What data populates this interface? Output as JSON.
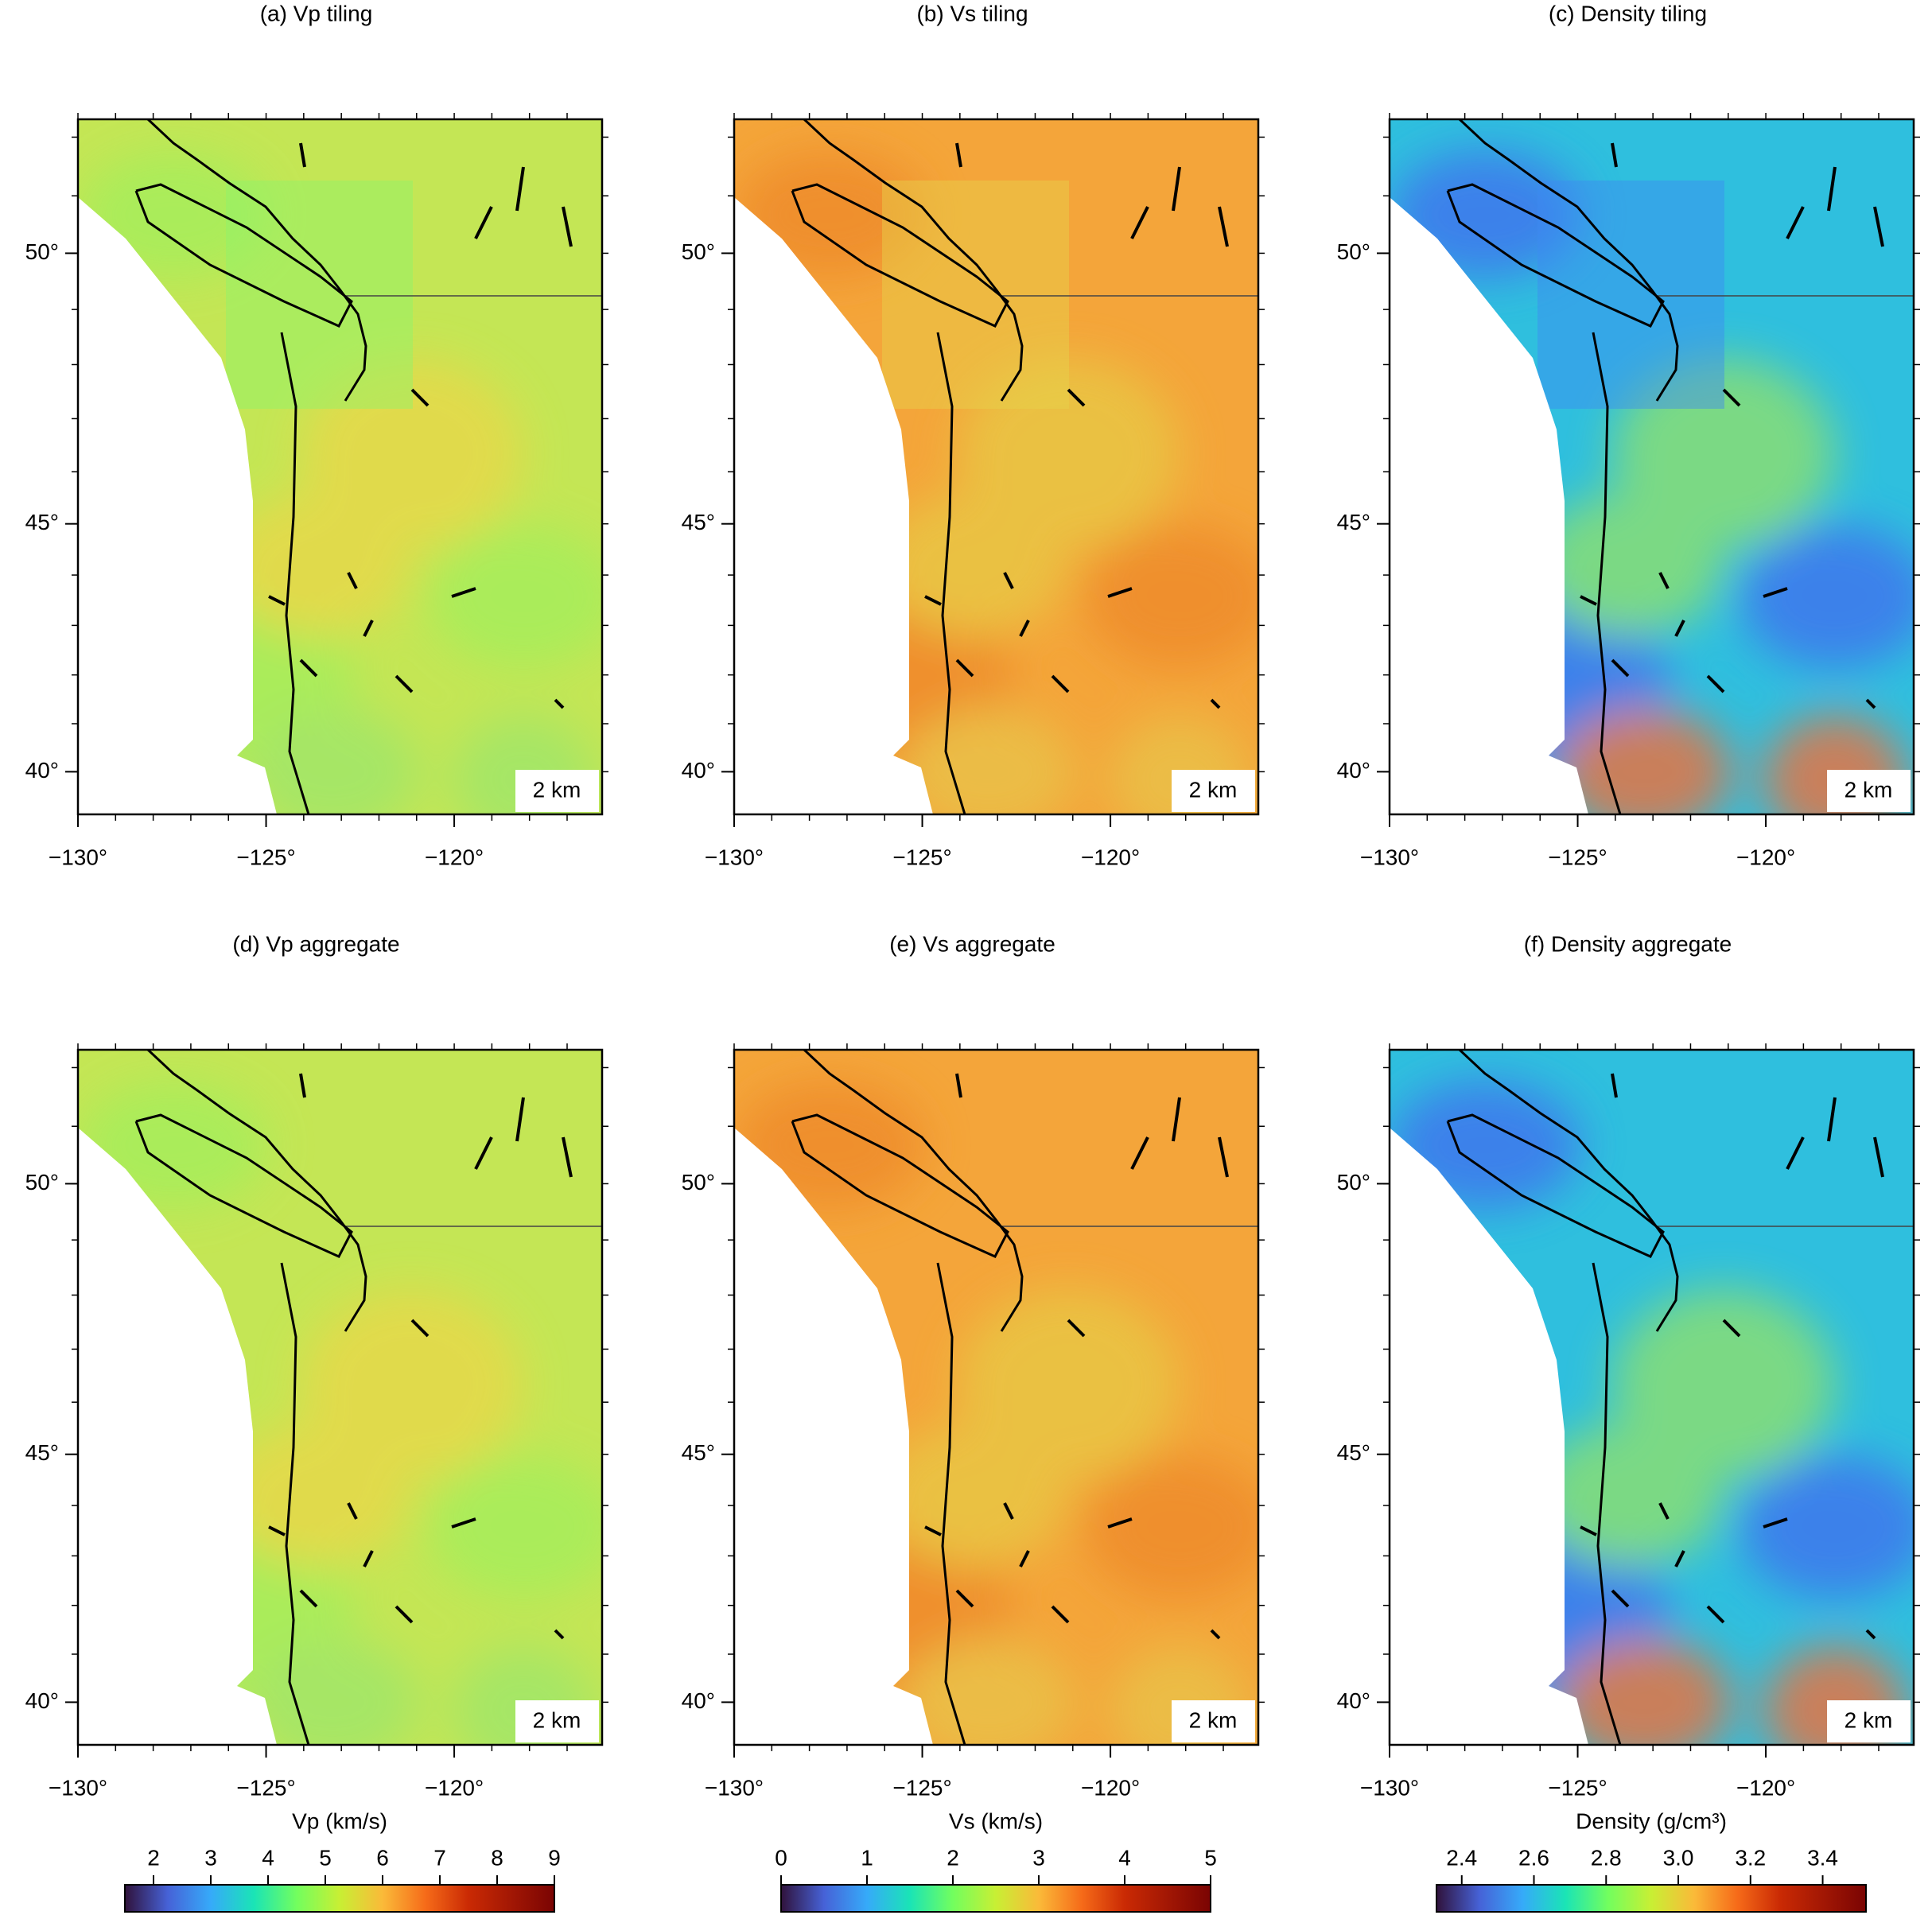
{
  "lon_range": [
    -130,
    -116.07
  ],
  "lat_range": [
    39.1,
    52.3
  ],
  "lon_ticks": [
    {
      "value": -130,
      "label": "−130°"
    },
    {
      "value": -125,
      "label": "−125°"
    },
    {
      "value": -120,
      "label": "−120°"
    }
  ],
  "lat_ticks": [
    {
      "value": 40,
      "label": "40°"
    },
    {
      "value": 45,
      "label": "45°"
    },
    {
      "value": 50,
      "label": "50°"
    }
  ],
  "columns": [
    {
      "colors": [
        "#c4e655",
        "#a4ee5c",
        "#e8d84a",
        "#9fe66a"
      ],
      "tile_color": "#8ff46a",
      "panels": [
        {
          "title": "(a) Vp tiling",
          "depth": "2 km"
        },
        {
          "title": "(d) Vp aggregate",
          "depth": "2 km"
        }
      ],
      "colorbar": {
        "label": "Vp (km/s)",
        "range": [
          1.5,
          9
        ],
        "ticks": [
          2,
          3,
          4,
          5,
          6,
          7,
          8,
          9
        ]
      }
    },
    {
      "colors": [
        "#f4a53a",
        "#ee8a2a",
        "#e8c845",
        "#e9c24a"
      ],
      "tile_color": "#e6d24c",
      "panels": [
        {
          "title": "(b) Vs tiling",
          "depth": "2 km"
        },
        {
          "title": "(e) Vs aggregate",
          "depth": "2 km"
        }
      ],
      "colorbar": {
        "label": "Vs (km/s)",
        "range": [
          0,
          5
        ],
        "ticks": [
          0,
          1,
          2,
          3,
          4,
          5
        ]
      }
    },
    {
      "colors": [
        "#2fbfde",
        "#3f72ee",
        "#8ee06e",
        "#f0703a"
      ],
      "tile_color": "#3f8af2",
      "panels": [
        {
          "title": "(c) Density tiling",
          "depth": "2 km"
        },
        {
          "title": "(f) Density aggregate",
          "depth": "2 km"
        }
      ],
      "colorbar": {
        "label": "Density (g/cm³)",
        "range": [
          2.33,
          3.52
        ],
        "ticks": [
          2.4,
          2.6,
          2.8,
          {
            "value": 3.0,
            "label": "3.0"
          },
          3.2,
          3.4
        ]
      }
    }
  ]
}
